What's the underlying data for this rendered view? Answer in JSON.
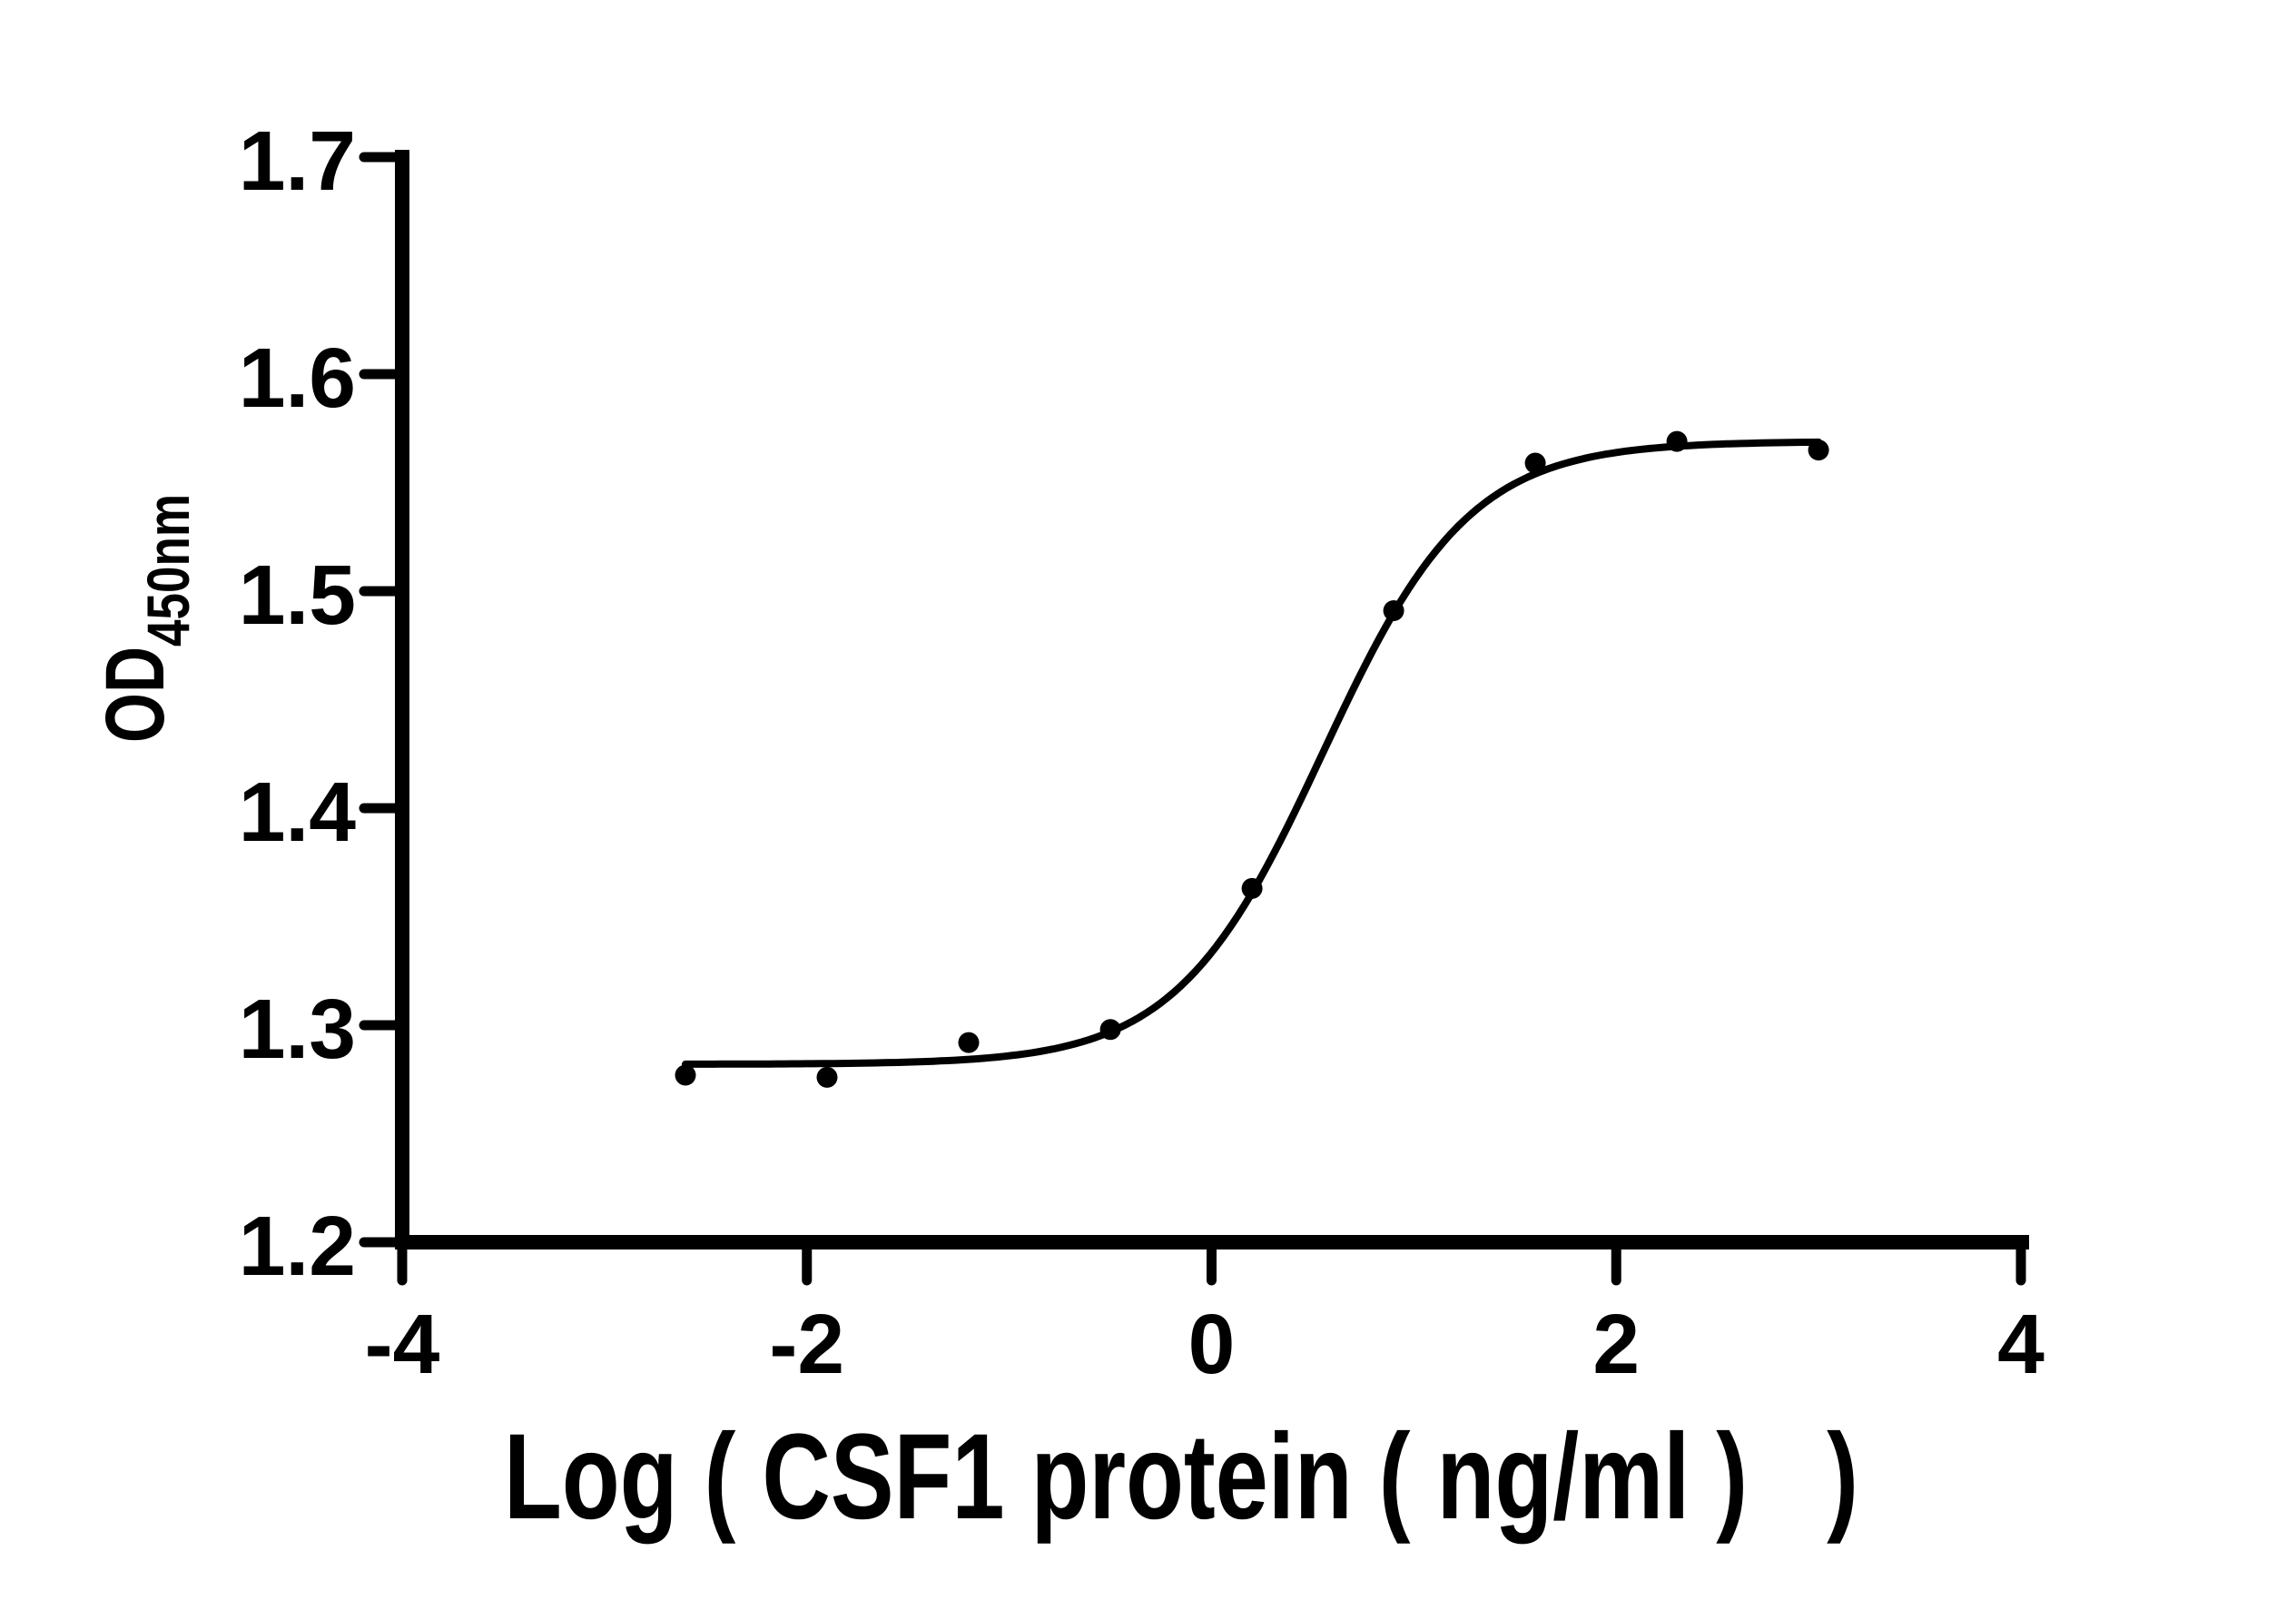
{
  "figure": {
    "background": "#ffffff"
  },
  "chart_data": {
    "type": "scatter",
    "subtype": "sigmoidal-dose-response-fit",
    "title": "",
    "xlabel": "Log ( CSF1 protein ( ng/ml )   )",
    "ylabel": "OD450nm",
    "ylabel_main": "OD",
    "ylabel_sub": "450nm",
    "xlim": [
      -4,
      4
    ],
    "ylim": [
      1.2,
      1.7
    ],
    "x_tick_labels": [
      "-4",
      "-2",
      "0",
      "2",
      "4"
    ],
    "x_tick_values": [
      -4,
      -2,
      0,
      2,
      4
    ],
    "y_tick_labels": [
      "1.2",
      "1.3",
      "1.4",
      "1.5",
      "1.6",
      "1.7"
    ],
    "y_tick_values": [
      1.2,
      1.3,
      1.4,
      1.5,
      1.6,
      1.7
    ],
    "grid": false,
    "legend": null,
    "points": [
      {
        "x": -2.6,
        "y": 1.277
      },
      {
        "x": -1.9,
        "y": 1.276
      },
      {
        "x": -1.2,
        "y": 1.292
      },
      {
        "x": -0.5,
        "y": 1.298
      },
      {
        "x": 0.2,
        "y": 1.363
      },
      {
        "x": 0.9,
        "y": 1.491
      },
      {
        "x": 1.6,
        "y": 1.559
      },
      {
        "x": 2.3,
        "y": 1.569
      },
      {
        "x": 3.0,
        "y": 1.565
      }
    ],
    "fit_curve": {
      "model": "four-parameter-logistic",
      "bottom": 1.282,
      "top": 1.569,
      "log_ec50": 0.55,
      "hill_slope": 1.2,
      "x_start": -2.6,
      "x_end": 3.0
    },
    "colors": {
      "axis": "#000000",
      "tick_labels": "#000000",
      "points": "#000000",
      "curve": "#000000",
      "background": "#ffffff"
    }
  }
}
